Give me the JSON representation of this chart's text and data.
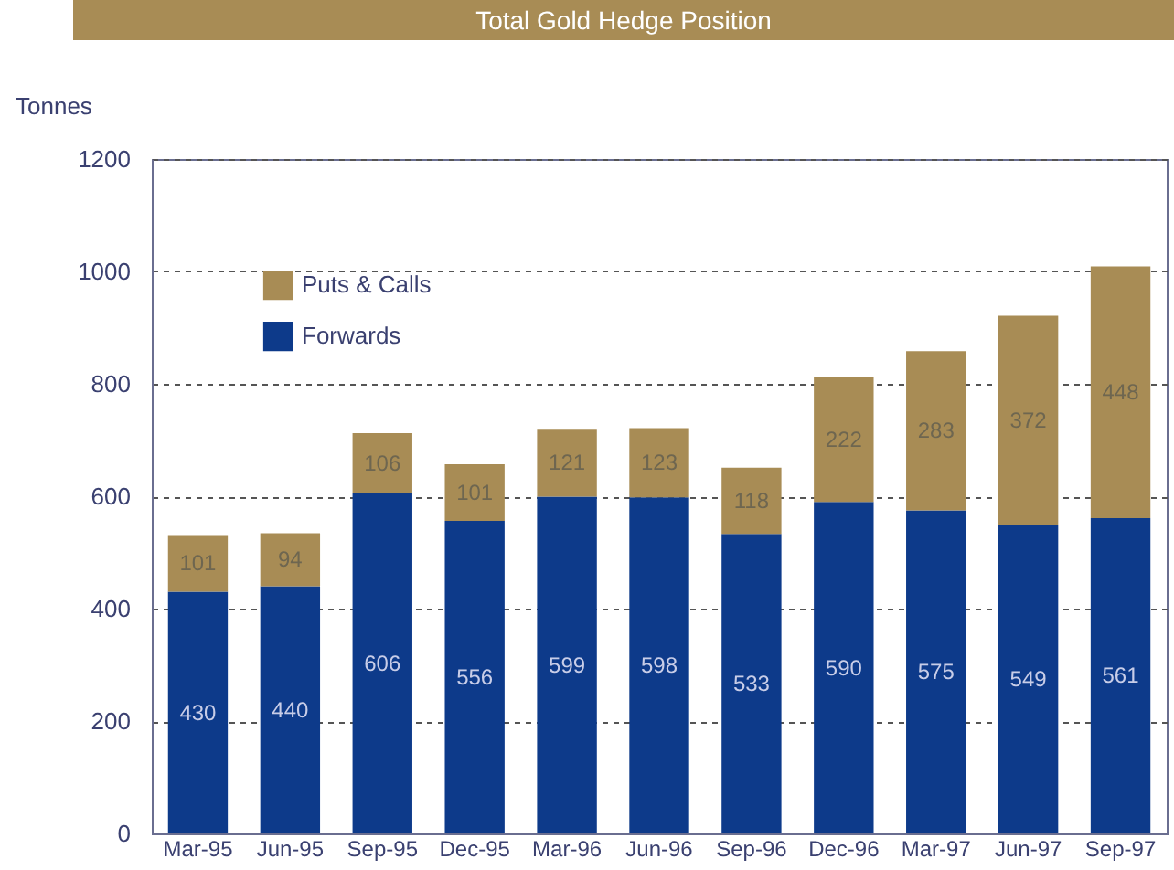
{
  "chart_data": {
    "type": "bar",
    "title": "Total Gold Hedge Position",
    "ylabel": "Tonnes",
    "categories": [
      "Mar-95",
      "Jun-95",
      "Sep-95",
      "Dec-95",
      "Mar-96",
      "Jun-96",
      "Sep-96",
      "Dec-96",
      "Mar-97",
      "Jun-97",
      "Sep-97"
    ],
    "series": [
      {
        "name": "Forwards",
        "color": "#0d3a8a",
        "values": [
          430,
          440,
          606,
          556,
          599,
          598,
          533,
          590,
          575,
          549,
          561
        ]
      },
      {
        "name": "Puts & Calls",
        "color": "#a88c55",
        "values": [
          101,
          94,
          106,
          101,
          121,
          123,
          118,
          222,
          283,
          372,
          448
        ]
      }
    ],
    "stacked": true,
    "data_labels": true,
    "ylim": [
      0,
      1200
    ],
    "yticks": [
      0,
      200,
      400,
      600,
      800,
      1000,
      1200
    ],
    "grid": "y",
    "legend": "top left"
  }
}
